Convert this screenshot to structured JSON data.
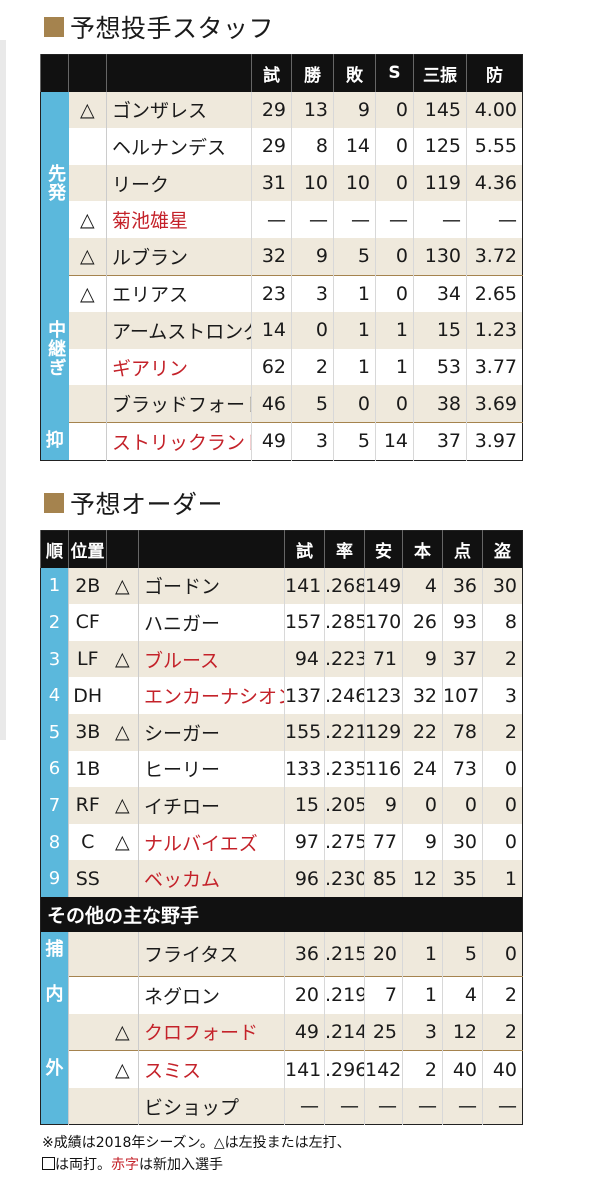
{
  "pitching": {
    "title": "予想投手スタッフ",
    "headers": [
      "試",
      "勝",
      "敗",
      "S",
      "三振",
      "防"
    ],
    "groups": {
      "starter": "先発",
      "middle": "中継ぎ",
      "closer": "抑"
    },
    "rows": [
      {
        "mark": "△",
        "name": "ゴンザレス",
        "g": "29",
        "w": "13",
        "l": "9",
        "s": "0",
        "so": "145",
        "era": "4.00"
      },
      {
        "mark": "",
        "name": "ヘルナンデス",
        "g": "29",
        "w": "8",
        "l": "14",
        "s": "0",
        "so": "125",
        "era": "5.55"
      },
      {
        "mark": "",
        "name": "リーク",
        "g": "31",
        "w": "10",
        "l": "10",
        "s": "0",
        "so": "119",
        "era": "4.36"
      },
      {
        "mark": "△",
        "name": "菊池雄星",
        "g": "—",
        "w": "—",
        "l": "—",
        "s": "—",
        "so": "—",
        "era": "—"
      },
      {
        "mark": "△",
        "name": "ルブラン",
        "g": "32",
        "w": "9",
        "l": "5",
        "s": "0",
        "so": "130",
        "era": "3.72"
      },
      {
        "mark": "△",
        "name": "エリアス",
        "g": "23",
        "w": "3",
        "l": "1",
        "s": "0",
        "so": "34",
        "era": "2.65"
      },
      {
        "mark": "",
        "name": "アームストロング",
        "g": "14",
        "w": "0",
        "l": "1",
        "s": "1",
        "so": "15",
        "era": "1.23"
      },
      {
        "mark": "",
        "name": "ギアリン",
        "g": "62",
        "w": "2",
        "l": "1",
        "s": "1",
        "so": "53",
        "era": "3.77"
      },
      {
        "mark": "",
        "name": "ブラッドフォード",
        "g": "46",
        "w": "5",
        "l": "0",
        "s": "0",
        "so": "38",
        "era": "3.69"
      },
      {
        "mark": "",
        "name": "ストリックランド",
        "g": "49",
        "w": "3",
        "l": "5",
        "s": "14",
        "so": "37",
        "era": "3.97"
      }
    ]
  },
  "order": {
    "title": "予想オーダー",
    "headers": [
      "順",
      "位置",
      "試",
      "率",
      "安",
      "本",
      "点",
      "盗"
    ],
    "rows": [
      {
        "no": "1",
        "pos": "2B",
        "mark": "△",
        "name": "ゴードン",
        "g": "141",
        "avg": ".268",
        "h": "149",
        "hr": "4",
        "rbi": "36",
        "sb": "30"
      },
      {
        "no": "2",
        "pos": "CF",
        "mark": "",
        "name": "ハニガー",
        "g": "157",
        "avg": ".285",
        "h": "170",
        "hr": "26",
        "rbi": "93",
        "sb": "8"
      },
      {
        "no": "3",
        "pos": "LF",
        "mark": "△",
        "name": "ブルース",
        "g": "94",
        "avg": ".223",
        "h": "71",
        "hr": "9",
        "rbi": "37",
        "sb": "2"
      },
      {
        "no": "4",
        "pos": "DH",
        "mark": "",
        "name": "エンカーナシオン",
        "g": "137",
        "avg": ".246",
        "h": "123",
        "hr": "32",
        "rbi": "107",
        "sb": "3"
      },
      {
        "no": "5",
        "pos": "3B",
        "mark": "△",
        "name": "シーガー",
        "g": "155",
        "avg": ".221",
        "h": "129",
        "hr": "22",
        "rbi": "78",
        "sb": "2"
      },
      {
        "no": "6",
        "pos": "1B",
        "mark": "",
        "name": "ヒーリー",
        "g": "133",
        "avg": ".235",
        "h": "116",
        "hr": "24",
        "rbi": "73",
        "sb": "0"
      },
      {
        "no": "7",
        "pos": "RF",
        "mark": "△",
        "name": "イチロー",
        "g": "15",
        "avg": ".205",
        "h": "9",
        "hr": "0",
        "rbi": "0",
        "sb": "0"
      },
      {
        "no": "8",
        "pos": "C",
        "mark": "△",
        "name": "ナルバイエズ",
        "g": "97",
        "avg": ".275",
        "h": "77",
        "hr": "9",
        "rbi": "30",
        "sb": "0"
      },
      {
        "no": "9",
        "pos": "SS",
        "mark": "",
        "name": "ベッカム",
        "g": "96",
        "avg": ".230",
        "h": "85",
        "hr": "12",
        "rbi": "35",
        "sb": "1"
      }
    ],
    "others_title": "その他の主な野手",
    "groups": {
      "catcher": "捕",
      "infield": "内",
      "outfield": "外"
    },
    "others": [
      {
        "mark": "",
        "name": "フライタス",
        "g": "36",
        "avg": ".215",
        "h": "20",
        "hr": "1",
        "rbi": "5",
        "sb": "0"
      },
      {
        "mark": "",
        "name": "ネグロン",
        "g": "20",
        "avg": ".219",
        "h": "7",
        "hr": "1",
        "rbi": "4",
        "sb": "2"
      },
      {
        "mark": "△",
        "name": "クロフォード",
        "g": "49",
        "avg": ".214",
        "h": "25",
        "hr": "3",
        "rbi": "12",
        "sb": "2"
      },
      {
        "mark": "△",
        "name": "スミス",
        "g": "141",
        "avg": ".296",
        "h": "142",
        "hr": "2",
        "rbi": "40",
        "sb": "40"
      },
      {
        "mark": "",
        "name": "ビショップ",
        "g": "—",
        "avg": "—",
        "h": "—",
        "hr": "—",
        "rbi": "—",
        "sb": "—"
      }
    ]
  },
  "footnote": {
    "line1": "※成績は2018年シーズン。△は左投または左打、",
    "line2_pre": "は両打。",
    "line2_red": "赤字",
    "line2_post": "は新加入選手"
  },
  "colors": {
    "accent_blue": "#5bb8dc",
    "beige": "#efe9dc",
    "red": "#c4222a",
    "gold": "#a5834e"
  }
}
